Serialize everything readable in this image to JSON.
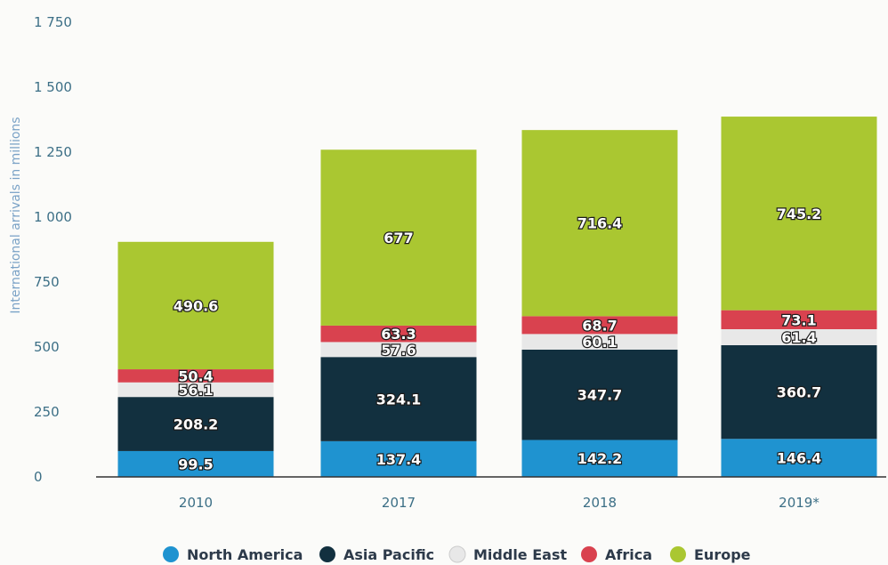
{
  "chart_data": {
    "type": "bar",
    "stacked": true,
    "categories": [
      "2010",
      "2017",
      "2018",
      "2019*"
    ],
    "series": [
      {
        "name": "North America",
        "color": "#1f93d0",
        "values": [
          99.5,
          137.4,
          142.2,
          146.4
        ]
      },
      {
        "name": "Asia Pacific",
        "color": "#12303f",
        "values": [
          208.2,
          324.1,
          347.7,
          360.7
        ]
      },
      {
        "name": "Middle East",
        "color": "#e8e8e8",
        "values": [
          56.1,
          57.6,
          60.1,
          61.4
        ]
      },
      {
        "name": "Africa",
        "color": "#d9424f",
        "values": [
          50.4,
          63.3,
          68.7,
          73.1
        ]
      },
      {
        "name": "Europe",
        "color": "#aac731",
        "values": [
          490.6,
          677,
          716.4,
          745.2
        ]
      }
    ],
    "data_labels": [
      [
        "99.5",
        "137.4",
        "142.2",
        "146.4"
      ],
      [
        "208.2",
        "324.1",
        "347.7",
        "360.7"
      ],
      [
        "56.1",
        "57.6",
        "60.1",
        "61.4"
      ],
      [
        "50.4",
        "63.3",
        "68.7",
        "73.1"
      ],
      [
        "490.6",
        "677",
        "716.4",
        "745.2"
      ]
    ],
    "ylabel": "International arrivals in millions",
    "ylim": [
      0,
      1750
    ],
    "yticks": [
      0,
      250,
      500,
      750,
      1000,
      1250,
      1500,
      1750
    ],
    "ytick_labels": [
      "0",
      "250",
      "500",
      "750",
      "1 000",
      "1 250",
      "1 500",
      "1 750"
    ],
    "grid": false,
    "legend_position": "bottom"
  }
}
